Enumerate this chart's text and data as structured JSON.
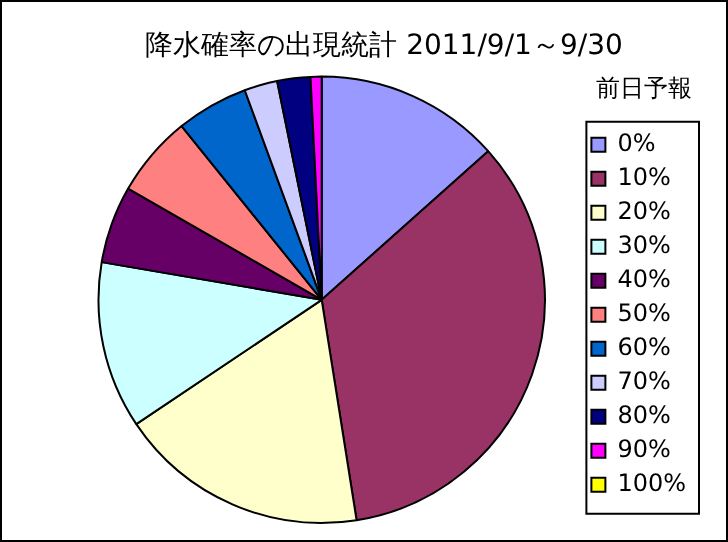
{
  "chart_data": {
    "type": "pie",
    "title": "降水確率の出現統計 2011/9/1～9/30",
    "legend_title": "前日予報",
    "legend": "right",
    "categories": [
      "0%",
      "10%",
      "20%",
      "30%",
      "40%",
      "50%",
      "60%",
      "70%",
      "80%",
      "90%",
      "100%"
    ],
    "values": [
      13.4,
      34.1,
      18.1,
      12.1,
      5.6,
      5.9,
      5.2,
      2.4,
      2.4,
      0.8,
      0
    ],
    "colors": [
      "#9999ff",
      "#993366",
      "#ffffcc",
      "#ccffff",
      "#660066",
      "#ff8080",
      "#0066cc",
      "#ccccff",
      "#000080",
      "#ff00ff",
      "#ffff00"
    ]
  }
}
